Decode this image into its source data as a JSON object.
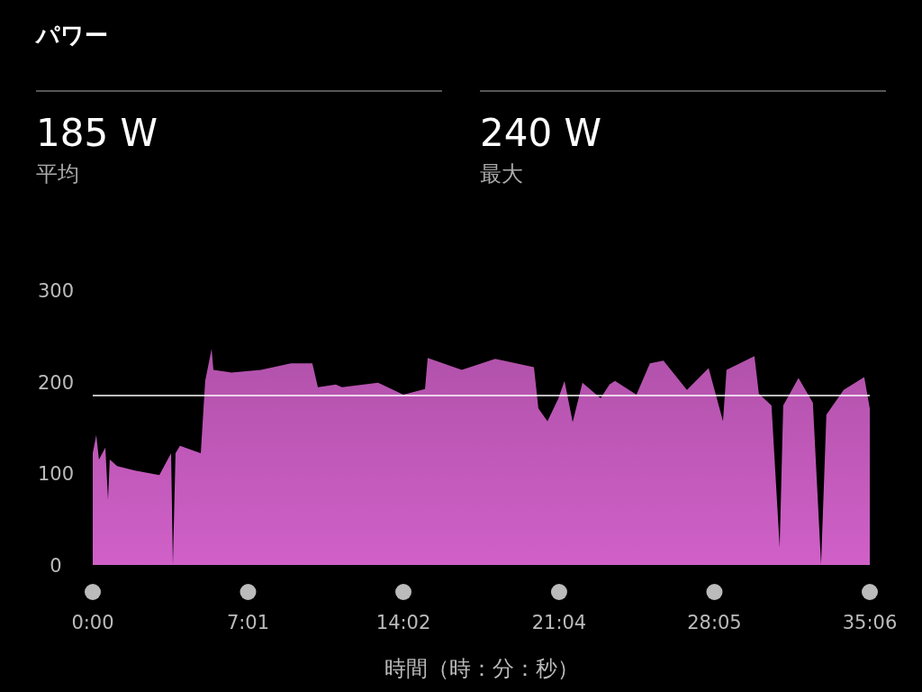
{
  "chart_data": {
    "type": "area",
    "title": "パワー",
    "xlabel": "時間（時：分：秒）",
    "annotations": [
      "185 W",
      "平均",
      "240 W",
      "最大"
    ],
    "xlim": [
      0,
      35.1
    ],
    "ylim": [
      0,
      300
    ],
    "yticks": [
      0,
      100,
      200,
      300
    ],
    "xticks": [
      {
        "value": 0,
        "label": "0:00"
      },
      {
        "value": 7.0167,
        "label": "7:01"
      },
      {
        "value": 14.0333,
        "label": "14:02"
      },
      {
        "value": 21.0667,
        "label": "21:04"
      },
      {
        "value": 28.0833,
        "label": "28:05"
      },
      {
        "value": 35.1,
        "label": "35:06"
      }
    ],
    "grid": false,
    "ref_lines": [
      {
        "axis": "y",
        "value": 185,
        "color": "#ffffff"
      }
    ],
    "x": [
      0,
      0.16,
      0.28,
      0.57,
      0.69,
      0.77,
      1.1,
      1.91,
      3.01,
      3.54,
      3.62,
      3.74,
      3.94,
      4.88,
      5.08,
      5.37,
      5.45,
      6.26,
      7.6,
      8.95,
      9.92,
      10.17,
      10.98,
      11.26,
      12.89,
      14.03,
      15.01,
      15.13,
      16.67,
      18.18,
      19.93,
      20.13,
      20.54,
      21.02,
      21.31,
      21.68,
      22.12,
      22.94,
      23.34,
      23.59,
      24.56,
      25.17,
      25.78,
      26.84,
      27.82,
      28.47,
      28.63,
      29.89,
      30.09,
      30.66,
      31.03,
      31.19,
      31.88,
      32.53,
      32.9,
      33.14,
      33.92,
      34.85,
      35.1
    ],
    "series": [
      {
        "color": "#d060c8",
        "values": [
          122,
          142,
          115,
          128,
          71,
          115,
          108,
          103,
          98,
          122,
          0,
          122,
          130,
          122,
          201,
          236,
          213,
          210,
          213,
          220,
          220,
          194,
          197,
          194,
          199,
          186,
          192,
          226,
          213,
          225,
          216,
          171,
          157,
          181,
          201,
          156,
          199,
          182,
          197,
          201,
          186,
          220,
          223,
          191,
          215,
          157,
          213,
          228,
          187,
          174,
          19,
          174,
          204,
          177,
          0,
          164,
          191,
          205,
          171
        ]
      }
    ]
  }
}
